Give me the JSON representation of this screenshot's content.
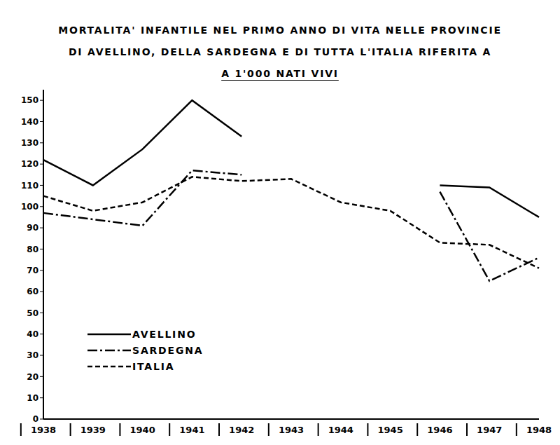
{
  "chart_data": {
    "type": "line",
    "title": [
      "MORTALITA' INFANTILE NEL PRIMO ANNO DI VITA NELLE PROVINCIE",
      "DI AVELLINO, DELLA SARDEGNA E DI TUTTA L'ITALIA RIFERITA A"
    ],
    "subtitle": "A 1'000 NATI VIVI",
    "categories": [
      "1938",
      "1939",
      "1940",
      "1941",
      "1942",
      "1943",
      "1944",
      "1945",
      "1946",
      "1947",
      "1948"
    ],
    "series": [
      {
        "name": "AVELLINO",
        "color": "#000000",
        "line_style": "solid",
        "values": [
          122,
          110,
          127,
          150,
          133,
          null,
          null,
          null,
          110,
          109,
          95
        ]
      },
      {
        "name": "SARDEGNA",
        "color": "#000000",
        "line_style": "dashdot",
        "values": [
          97,
          94,
          91,
          117,
          115,
          null,
          null,
          null,
          107,
          65,
          76
        ]
      },
      {
        "name": "ITALIA",
        "color": "#000000",
        "line_style": "dashed",
        "values": [
          105,
          98,
          102,
          114,
          112,
          113,
          102,
          98,
          83,
          82,
          71
        ]
      }
    ],
    "ylim": [
      0,
      155
    ],
    "yticks": [
      0,
      10,
      20,
      30,
      40,
      50,
      60,
      70,
      80,
      90,
      100,
      110,
      120,
      130,
      140,
      150
    ],
    "grid": false,
    "legend": "lower left"
  }
}
